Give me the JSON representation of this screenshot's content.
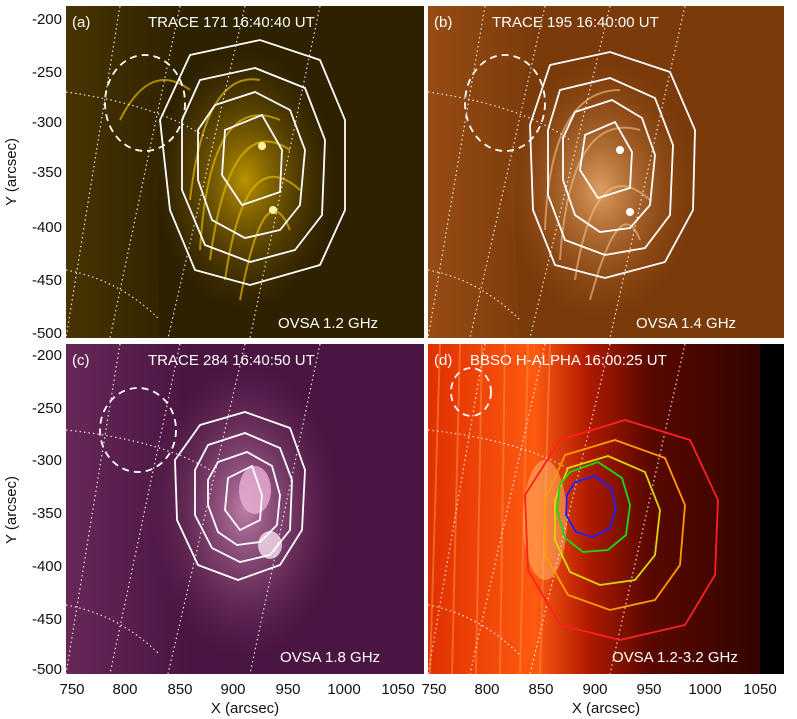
{
  "figure": {
    "x_axis_label": "X (arcsec)",
    "y_axis_label": "Y (arcsec)",
    "x_ticks": [
      "750",
      "800",
      "850",
      "900",
      "950",
      "1000",
      "1050"
    ],
    "y_ticks": [
      "-200",
      "-250",
      "-300",
      "-350",
      "-400",
      "-450",
      "-500"
    ]
  },
  "panels": [
    {
      "id": "a",
      "label": "(a)",
      "title": "TRACE 171 16:40:40 UT",
      "freq": "OVSA 1.2 GHz",
      "colors": {
        "bg": "#2e2100",
        "mid": "#6a4c00",
        "bright": "#c9a000",
        "hot": "#fff2a0"
      }
    },
    {
      "id": "b",
      "label": "(b)",
      "title": "TRACE 195 16:40:00 UT",
      "freq": "OVSA 1.4 GHz",
      "colors": {
        "bg": "#7a3a0a",
        "mid": "#a95a1c",
        "bright": "#e6a05a",
        "hot": "#fff0d8"
      }
    },
    {
      "id": "c",
      "label": "(c)",
      "title": "TRACE 284  16:40:50 UT",
      "freq": "OVSA 1.8 GHz",
      "colors": {
        "bg": "#4a1540",
        "mid": "#7a3468",
        "bright": "#c0789f",
        "hot": "#f6dff0"
      }
    },
    {
      "id": "d",
      "label": "(d)",
      "title": "BBSO H-ALPHA 16:00:25 UT",
      "freq": "OVSA 1.2-3.2 GHz",
      "colors": {
        "bg": "#3a0500",
        "mid": "#a81800",
        "bright": "#ff5010",
        "hot": "#ffd080"
      },
      "contour_colors": [
        "#ff2020",
        "#ff9a00",
        "#d8d800",
        "#18d818",
        "#2020ff"
      ]
    }
  ]
}
